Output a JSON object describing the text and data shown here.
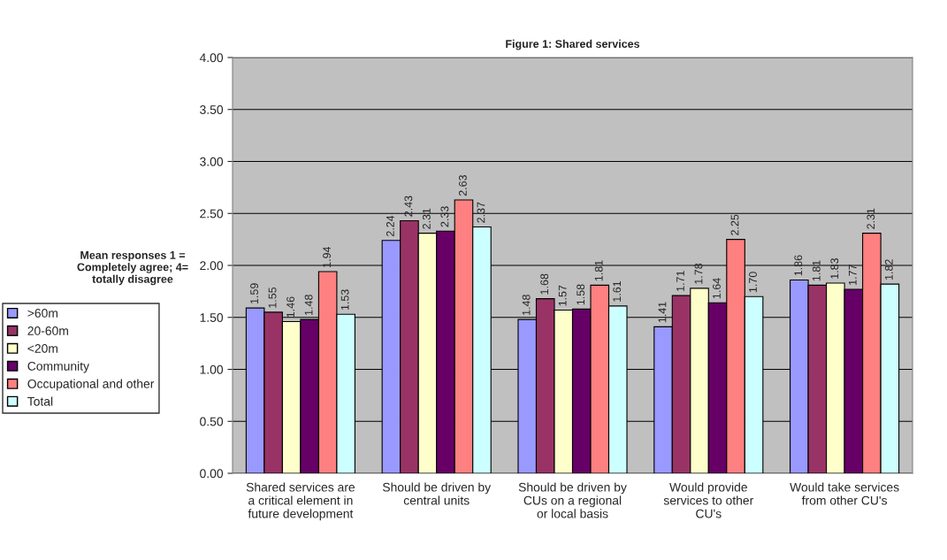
{
  "chart_data": {
    "type": "bar",
    "title": "Figure 1: Shared services",
    "ylabel": "Mean responses 1 =\nCompletely agree; 4=\ntotally disagree",
    "categories": [
      "Shared services are\na critical element in\nfuture development",
      "Should be driven by\ncentral units",
      "Should be driven by\nCUs on a regional\nor local basis",
      "Would provide\nservices to other\nCU's",
      "Would take services\nfrom other CU's"
    ],
    "series": [
      {
        "name": ">60m",
        "color": "#9999ff",
        "values": [
          1.59,
          2.24,
          1.48,
          1.41,
          1.86
        ],
        "value_labels": [
          "1.59",
          "2.24",
          "1.48",
          "1.41",
          "1.86"
        ]
      },
      {
        "name": "20-60m",
        "color": "#993366",
        "values": [
          1.55,
          2.43,
          1.68,
          1.71,
          1.81
        ],
        "value_labels": [
          "1.55",
          "2.43",
          "1.68",
          "1.71",
          "1.81"
        ]
      },
      {
        "name": "<20m",
        "color": "#ffffcc",
        "values": [
          1.46,
          2.31,
          1.57,
          1.78,
          1.83
        ],
        "value_labels": [
          "1.46",
          "2.31",
          "1.57",
          "1.78",
          "1.83"
        ]
      },
      {
        "name": "Community",
        "color": "#660066",
        "values": [
          1.48,
          2.33,
          1.58,
          1.64,
          1.77
        ],
        "value_labels": [
          "1.48",
          "2.33",
          "1.58",
          "1.64",
          "1.77"
        ]
      },
      {
        "name": "Occupational and other",
        "color": "#ff8080",
        "values": [
          1.94,
          2.63,
          1.81,
          2.25,
          2.31
        ],
        "value_labels": [
          "1.94",
          "2.63",
          "1.81",
          "2.25",
          "2.31"
        ]
      },
      {
        "name": "Total",
        "color": "#ccffff",
        "values": [
          1.53,
          2.37,
          1.61,
          1.7,
          1.82
        ],
        "value_labels": [
          "1.53",
          "2.37",
          "1.61",
          "1.70",
          "1.82"
        ]
      }
    ],
    "ylim": [
      0,
      4
    ],
    "yticks": [
      {
        "value": 0,
        "label": "0.00"
      },
      {
        "value": 0.5,
        "label": "0.50"
      },
      {
        "value": 1,
        "label": "1.00"
      },
      {
        "value": 1.5,
        "label": "1.50"
      },
      {
        "value": 2,
        "label": "2.00"
      },
      {
        "value": 2.5,
        "label": "2.50"
      },
      {
        "value": 3,
        "label": "3.00"
      },
      {
        "value": 3.5,
        "label": "3.50"
      },
      {
        "value": 4,
        "label": "4.00"
      }
    ],
    "grid": "y",
    "legend": "left"
  }
}
